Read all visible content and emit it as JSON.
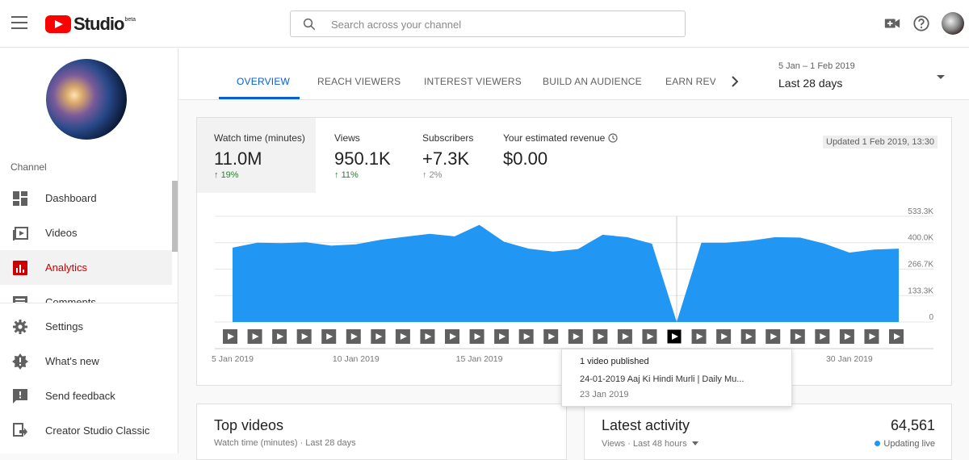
{
  "header": {
    "logo_text": "Studio",
    "logo_badge": "beta",
    "search_placeholder": "Search across your channel"
  },
  "sidebar": {
    "channel_label": "Channel",
    "items": [
      {
        "label": "Dashboard",
        "icon": "dashboard-icon"
      },
      {
        "label": "Videos",
        "icon": "videos-icon"
      },
      {
        "label": "Analytics",
        "icon": "analytics-icon",
        "active": true
      },
      {
        "label": "Comments",
        "icon": "comments-icon"
      },
      {
        "label": "Settings",
        "icon": "gear-icon"
      },
      {
        "label": "What's new",
        "icon": "new-badge-icon"
      },
      {
        "label": "Send feedback",
        "icon": "feedback-icon"
      },
      {
        "label": "Creator Studio Classic",
        "icon": "classic-icon"
      }
    ]
  },
  "tabs": [
    {
      "label": "OVERVIEW",
      "active": true
    },
    {
      "label": "REACH VIEWERS"
    },
    {
      "label": "INTEREST VIEWERS"
    },
    {
      "label": "BUILD AN AUDIENCE"
    },
    {
      "label": "EARN REVE"
    }
  ],
  "date_picker": {
    "range": "5 Jan – 1 Feb 2019",
    "label": "Last 28 days"
  },
  "metrics": [
    {
      "label": "Watch time (minutes)",
      "value": "11.0M",
      "delta": "19%",
      "direction": "up"
    },
    {
      "label": "Views",
      "value": "950.1K",
      "delta": "11%",
      "direction": "up"
    },
    {
      "label": "Subscribers",
      "value": "+7.3K",
      "delta": "2%",
      "direction": "neutral"
    },
    {
      "label": "Your estimated revenue",
      "value": "$0.00"
    }
  ],
  "updated": "Updated 1 Feb 2019, 13:30",
  "chart_data": {
    "type": "area",
    "x": [
      "5 Jan",
      "6 Jan",
      "7 Jan",
      "8 Jan",
      "9 Jan",
      "10 Jan",
      "11 Jan",
      "12 Jan",
      "13 Jan",
      "14 Jan",
      "15 Jan",
      "16 Jan",
      "17 Jan",
      "18 Jan",
      "19 Jan",
      "20 Jan",
      "21 Jan",
      "22 Jan",
      "23 Jan",
      "24 Jan",
      "25 Jan",
      "26 Jan",
      "27 Jan",
      "28 Jan",
      "29 Jan",
      "30 Jan",
      "31 Jan",
      "1 Feb"
    ],
    "values": [
      375000,
      400000,
      398000,
      402000,
      385000,
      392000,
      415000,
      430000,
      445000,
      432000,
      490000,
      405000,
      370000,
      355000,
      368000,
      440000,
      428000,
      395000,
      0,
      400000,
      400000,
      410000,
      428000,
      426000,
      395000,
      350000,
      365000,
      370000
    ],
    "x_tick_labels": [
      "5 Jan 2019",
      "10 Jan 2019",
      "15 Jan 2019",
      "30 Jan 2019"
    ],
    "x_tick_dates": [
      "5 Jan",
      "10 Jan",
      "15 Jan",
      "30 Jan"
    ],
    "y_tick_labels": [
      "0",
      "133.3K",
      "266.7K",
      "400.0K",
      "533.3K"
    ],
    "y_ticks": [
      0,
      133300,
      266700,
      400000,
      533300
    ],
    "ylim": [
      0,
      533300
    ],
    "color": "#2196f3",
    "grid": true,
    "highlight_date": "23 Jan"
  },
  "tooltip": {
    "title": "1 video published",
    "video": "24-01-2019 Aaj Ki Hindi Murli | Daily Mu...",
    "date": "23 Jan 2019"
  },
  "top_videos": {
    "title": "Top videos",
    "subtitle": "Watch time (minutes) · Last 28 days"
  },
  "latest_activity": {
    "title": "Latest activity",
    "subtitle": "Views · Last 48 hours",
    "count": "64,561",
    "status": "Updating live"
  }
}
